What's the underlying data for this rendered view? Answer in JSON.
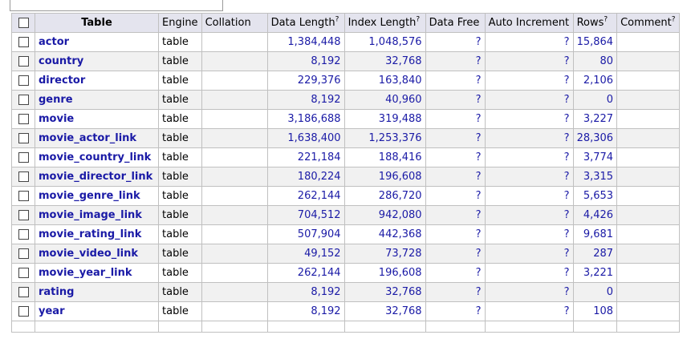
{
  "headers": {
    "table": "Table",
    "engine": "Engine",
    "collation": "Collation",
    "data_length": "Data Length",
    "index_length": "Index Length",
    "data_free": "Data Free",
    "auto_increment": "Auto Increment",
    "rows": "Rows",
    "comment": "Comment",
    "help_mark": "?"
  },
  "rows": [
    {
      "name": "actor",
      "engine": "table",
      "collation": "",
      "data_length": "1,384,448",
      "index_length": "1,048,576",
      "data_free": "?",
      "auto_increment": "?",
      "rows": "15,864",
      "comment": ""
    },
    {
      "name": "country",
      "engine": "table",
      "collation": "",
      "data_length": "8,192",
      "index_length": "32,768",
      "data_free": "?",
      "auto_increment": "?",
      "rows": "80",
      "comment": ""
    },
    {
      "name": "director",
      "engine": "table",
      "collation": "",
      "data_length": "229,376",
      "index_length": "163,840",
      "data_free": "?",
      "auto_increment": "?",
      "rows": "2,106",
      "comment": ""
    },
    {
      "name": "genre",
      "engine": "table",
      "collation": "",
      "data_length": "8,192",
      "index_length": "40,960",
      "data_free": "?",
      "auto_increment": "?",
      "rows": "0",
      "comment": ""
    },
    {
      "name": "movie",
      "engine": "table",
      "collation": "",
      "data_length": "3,186,688",
      "index_length": "319,488",
      "data_free": "?",
      "auto_increment": "?",
      "rows": "3,227",
      "comment": ""
    },
    {
      "name": "movie_actor_link",
      "engine": "table",
      "collation": "",
      "data_length": "1,638,400",
      "index_length": "1,253,376",
      "data_free": "?",
      "auto_increment": "?",
      "rows": "28,306",
      "comment": ""
    },
    {
      "name": "movie_country_link",
      "engine": "table",
      "collation": "",
      "data_length": "221,184",
      "index_length": "188,416",
      "data_free": "?",
      "auto_increment": "?",
      "rows": "3,774",
      "comment": ""
    },
    {
      "name": "movie_director_link",
      "engine": "table",
      "collation": "",
      "data_length": "180,224",
      "index_length": "196,608",
      "data_free": "?",
      "auto_increment": "?",
      "rows": "3,315",
      "comment": ""
    },
    {
      "name": "movie_genre_link",
      "engine": "table",
      "collation": "",
      "data_length": "262,144",
      "index_length": "286,720",
      "data_free": "?",
      "auto_increment": "?",
      "rows": "5,653",
      "comment": ""
    },
    {
      "name": "movie_image_link",
      "engine": "table",
      "collation": "",
      "data_length": "704,512",
      "index_length": "942,080",
      "data_free": "?",
      "auto_increment": "?",
      "rows": "4,426",
      "comment": ""
    },
    {
      "name": "movie_rating_link",
      "engine": "table",
      "collation": "",
      "data_length": "507,904",
      "index_length": "442,368",
      "data_free": "?",
      "auto_increment": "?",
      "rows": "9,681",
      "comment": ""
    },
    {
      "name": "movie_video_link",
      "engine": "table",
      "collation": "",
      "data_length": "49,152",
      "index_length": "73,728",
      "data_free": "?",
      "auto_increment": "?",
      "rows": "287",
      "comment": ""
    },
    {
      "name": "movie_year_link",
      "engine": "table",
      "collation": "",
      "data_length": "262,144",
      "index_length": "196,608",
      "data_free": "?",
      "auto_increment": "?",
      "rows": "3,221",
      "comment": ""
    },
    {
      "name": "rating",
      "engine": "table",
      "collation": "",
      "data_length": "8,192",
      "index_length": "32,768",
      "data_free": "?",
      "auto_increment": "?",
      "rows": "0",
      "comment": ""
    },
    {
      "name": "year",
      "engine": "table",
      "collation": "",
      "data_length": "8,192",
      "index_length": "32,768",
      "data_free": "?",
      "auto_increment": "?",
      "rows": "108",
      "comment": ""
    }
  ],
  "colors": {
    "header_bg": "#e4e4ee",
    "link": "#1a1aa6",
    "row_alt": "#f1f1f1",
    "border": "#c0c0c0"
  }
}
